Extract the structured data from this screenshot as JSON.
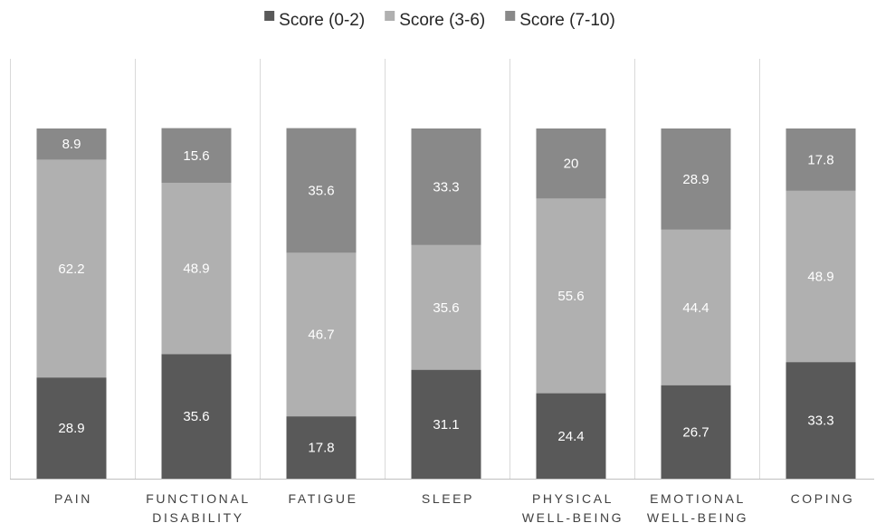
{
  "chart_data": {
    "type": "bar",
    "stacked": true,
    "categories": [
      [
        "PAIN"
      ],
      [
        "FUNCTIONAL",
        "DISABILITY"
      ],
      [
        "FATIGUE"
      ],
      [
        "SLEEP"
      ],
      [
        "PHYSICAL",
        "WELL-BEING"
      ],
      [
        "EMOTIONAL",
        "WELL-BEING"
      ],
      [
        "COPING"
      ]
    ],
    "series": [
      {
        "name": "Score (0-2)",
        "color": "#595959",
        "values": [
          28.9,
          35.6,
          17.8,
          31.1,
          24.4,
          26.7,
          33.3
        ]
      },
      {
        "name": "Score (3-6)",
        "color": "#b0b0b0",
        "values": [
          62.2,
          48.9,
          46.7,
          35.6,
          55.6,
          44.4,
          48.9
        ]
      },
      {
        "name": "Score (7-10)",
        "color": "#898989",
        "values": [
          8.9,
          15.6,
          35.6,
          33.3,
          20,
          28.9,
          17.8
        ]
      }
    ],
    "ylim": [
      0,
      100
    ],
    "legend_position": "top-center",
    "grid": false,
    "category_separators": true,
    "title": "",
    "xlabel": "",
    "ylabel": ""
  }
}
